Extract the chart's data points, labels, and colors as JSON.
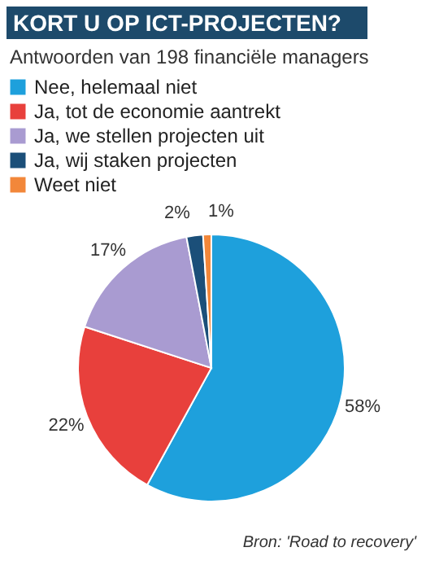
{
  "chart_data": {
    "type": "pie",
    "title": "KORT U OP ICT-PROJECTEN?",
    "subtitle": "Antwoorden van 198 financiële managers",
    "categories": [
      "Nee, helemaal niet",
      "Ja, tot de economie aantrekt",
      "Ja, we stellen projecten uit",
      "Ja, wij staken projecten",
      "Weet niet"
    ],
    "values": [
      58,
      22,
      17,
      2,
      1
    ],
    "colors": [
      "#1ea0dc",
      "#e8403c",
      "#a99bd1",
      "#1b4f79",
      "#f2873a"
    ],
    "value_labels": [
      "58%",
      "22%",
      "17%",
      "2%",
      "1%"
    ],
    "legend": "top",
    "annotations": [
      "Bron: 'Road to recovery'"
    ]
  }
}
